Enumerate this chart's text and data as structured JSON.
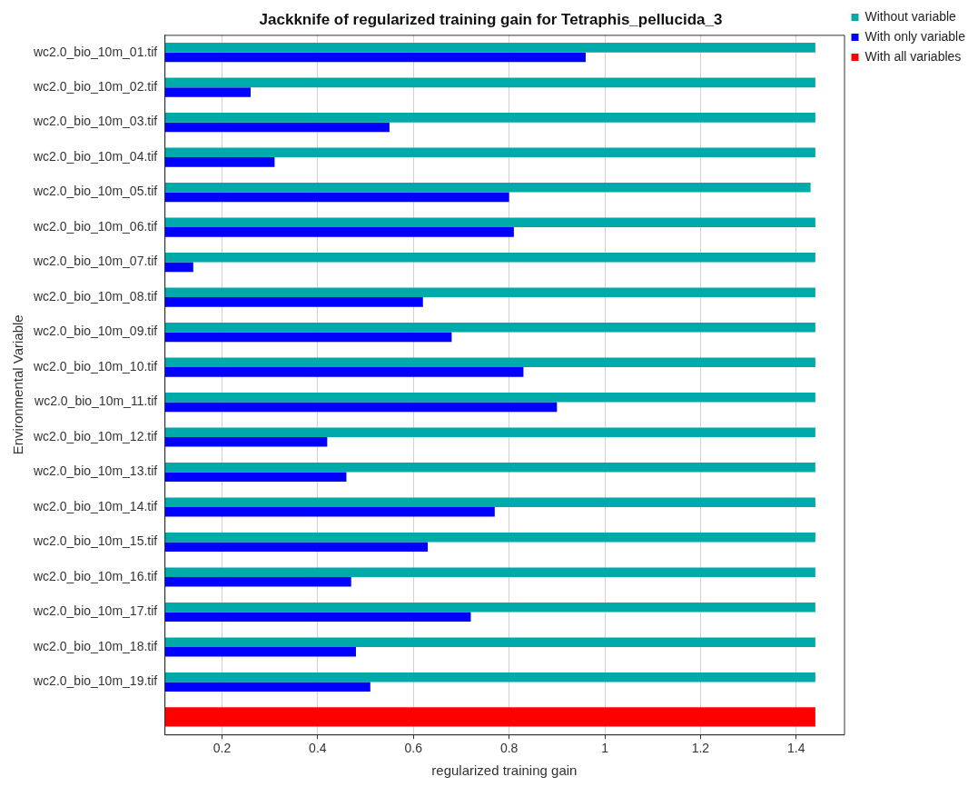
{
  "chart_data": {
    "type": "bar",
    "orientation": "horizontal",
    "title": "Jackknife of regularized training gain for Tetraphis_pellucida_3",
    "xlabel": "regularized training gain",
    "ylabel": "Environmental Variable",
    "categories": [
      "wc2.0_bio_10m_01.tif",
      "wc2.0_bio_10m_02.tif",
      "wc2.0_bio_10m_03.tif",
      "wc2.0_bio_10m_04.tif",
      "wc2.0_bio_10m_05.tif",
      "wc2.0_bio_10m_06.tif",
      "wc2.0_bio_10m_07.tif",
      "wc2.0_bio_10m_08.tif",
      "wc2.0_bio_10m_09.tif",
      "wc2.0_bio_10m_10.tif",
      "wc2.0_bio_10m_11.tif",
      "wc2.0_bio_10m_12.tif",
      "wc2.0_bio_10m_13.tif",
      "wc2.0_bio_10m_14.tif",
      "wc2.0_bio_10m_15.tif",
      "wc2.0_bio_10m_16.tif",
      "wc2.0_bio_10m_17.tif",
      "wc2.0_bio_10m_18.tif",
      "wc2.0_bio_10m_19.tif",
      null
    ],
    "series": [
      {
        "name": "Without variable",
        "color": "#00aaaa",
        "values": [
          1.44,
          1.44,
          1.44,
          1.44,
          1.43,
          1.44,
          1.44,
          1.44,
          1.44,
          1.44,
          1.44,
          1.44,
          1.44,
          1.44,
          1.44,
          1.44,
          1.44,
          1.44,
          1.44,
          null
        ]
      },
      {
        "name": "With only variable",
        "color": "#0000ff",
        "values": [
          0.96,
          0.26,
          0.55,
          0.31,
          0.8,
          0.81,
          0.14,
          0.62,
          0.68,
          0.83,
          0.9,
          0.42,
          0.46,
          0.77,
          0.63,
          0.47,
          0.72,
          0.48,
          0.51,
          null
        ]
      },
      {
        "name": "With all variables",
        "color": "#ff0000",
        "values": [
          null,
          null,
          null,
          null,
          null,
          null,
          null,
          null,
          null,
          null,
          null,
          null,
          null,
          null,
          null,
          null,
          null,
          null,
          null,
          1.44
        ]
      }
    ],
    "xlim": [
      0.08,
      1.5
    ],
    "xticks": [
      0.2,
      0.4,
      0.6,
      0.8,
      1.0,
      1.2,
      1.4
    ],
    "grid": "x",
    "legend": "top right"
  }
}
